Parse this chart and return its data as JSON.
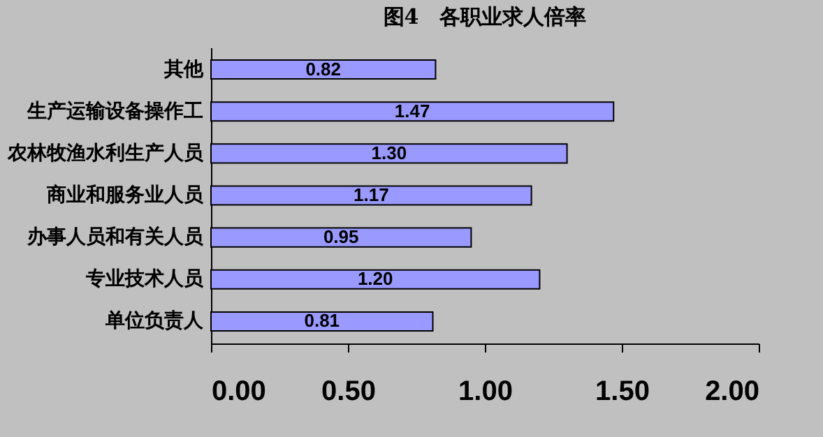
{
  "chart_data": {
    "type": "bar",
    "orientation": "horizontal",
    "title": "图4　各职业求人倍率",
    "categories": [
      "其他",
      "生产运输设备操作工",
      "农林牧渔水利生产人员",
      "商业和服务业人员",
      "办事人员和有关人员",
      "专业技术人员",
      "单位负责人"
    ],
    "values": [
      0.82,
      1.47,
      1.3,
      1.17,
      0.95,
      1.2,
      0.81
    ],
    "value_labels": [
      "0.82",
      "1.47",
      "1.30",
      "1.17",
      "0.95",
      "1.20",
      "0.81"
    ],
    "color": "#9999ff",
    "xlim": [
      0,
      2
    ],
    "xticks": [
      {
        "value": 0,
        "label": "0.00"
      },
      {
        "value": 0.5,
        "label": "0.50"
      },
      {
        "value": 1,
        "label": "1.00"
      },
      {
        "value": 1.5,
        "label": "1.50"
      },
      {
        "value": 2,
        "label": "2.00"
      }
    ],
    "grid": false
  }
}
